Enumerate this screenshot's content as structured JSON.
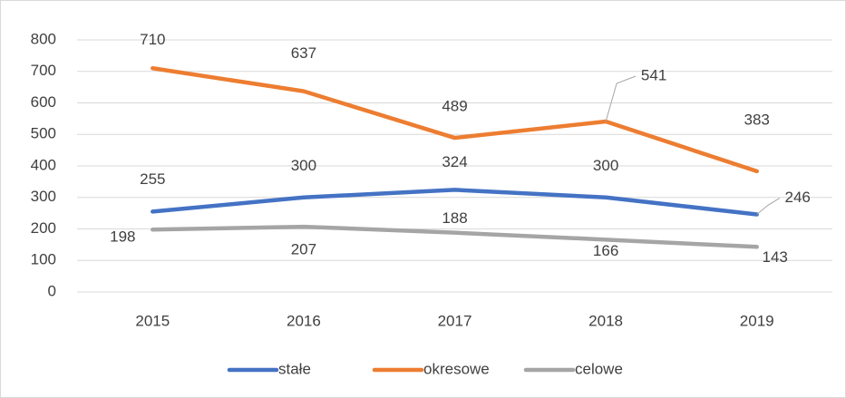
{
  "chart_data": {
    "type": "line",
    "categories": [
      "2015",
      "2016",
      "2017",
      "2018",
      "2019"
    ],
    "series": [
      {
        "name": "stałe",
        "color": "#4472c4",
        "values": [
          255,
          300,
          324,
          300,
          246
        ]
      },
      {
        "name": "okresowe",
        "color": "#ed7d31",
        "values": [
          710,
          637,
          489,
          541,
          383
        ]
      },
      {
        "name": "celowe",
        "color": "#a5a5a5",
        "values": [
          198,
          207,
          188,
          166,
          143
        ]
      }
    ],
    "ylim": [
      0,
      800
    ],
    "yticks": [
      0,
      100,
      200,
      300,
      400,
      500,
      600,
      700,
      800
    ],
    "grid": true,
    "legend": "bottom"
  }
}
